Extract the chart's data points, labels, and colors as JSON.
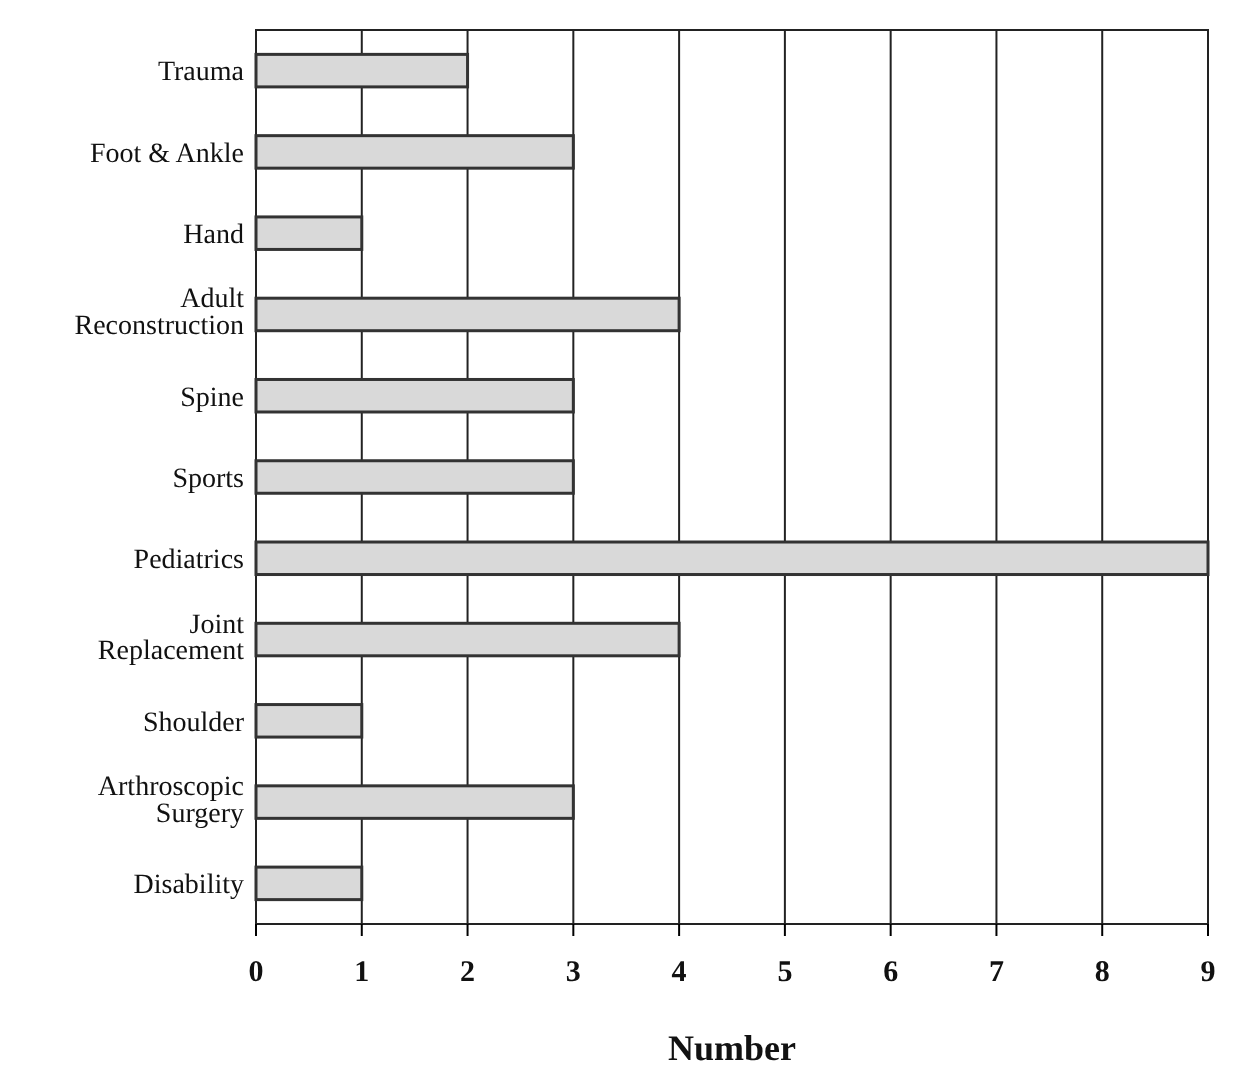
{
  "chart_data": {
    "type": "bar",
    "orientation": "horizontal",
    "xlabel": "Number",
    "categories": [
      "Trauma",
      "Foot & Ankle",
      "Hand",
      "Adult Reconstruction",
      "Spine",
      "Sports",
      "Pediatrics",
      "Joint Replacement",
      "Shoulder",
      "Arthroscopic Surgery",
      "Disability"
    ],
    "values": [
      2,
      3,
      1,
      4,
      3,
      3,
      9,
      4,
      1,
      3,
      1
    ],
    "color": "#d9d9d9",
    "xlim": [
      0,
      9
    ],
    "xticks": [
      0,
      1,
      2,
      3,
      4,
      5,
      6,
      7,
      8,
      9
    ],
    "grid": "x"
  }
}
